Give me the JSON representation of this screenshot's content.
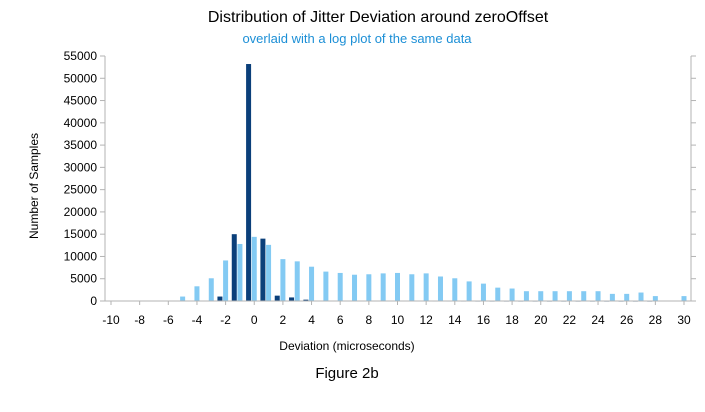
{
  "chart_data": {
    "type": "bar",
    "title": "Distribution of Jitter Deviation around zeroOffset",
    "subtitle": "overlaid with a log plot of the same data",
    "xlabel": "Deviation (microseconds)",
    "ylabel": "Number of Samples",
    "caption": "Figure 2b",
    "xlim": [
      -10,
      30
    ],
    "ylim": [
      0,
      55000
    ],
    "x_ticks": [
      -10,
      -8,
      -6,
      -4,
      -2,
      0,
      2,
      4,
      6,
      8,
      10,
      12,
      14,
      16,
      18,
      20,
      22,
      24,
      26,
      28,
      30
    ],
    "y_ticks": [
      0,
      5000,
      10000,
      15000,
      20000,
      25000,
      30000,
      35000,
      40000,
      45000,
      50000,
      55000
    ],
    "grid": false,
    "colors": {
      "linear": "#0b3f7a",
      "log": "#83caf3"
    },
    "categories": [
      -10,
      -9,
      -8,
      -7,
      -6,
      -5,
      -4,
      -3,
      -2,
      -1,
      0,
      1,
      2,
      3,
      4,
      5,
      6,
      7,
      8,
      9,
      10,
      11,
      12,
      13,
      14,
      15,
      16,
      17,
      18,
      19,
      20,
      21,
      22,
      23,
      24,
      25,
      26,
      27,
      28,
      29,
      30
    ],
    "series": [
      {
        "values": [
          0,
          0,
          0,
          0,
          0,
          0,
          0,
          0,
          1000,
          15000,
          53200,
          14000,
          1200,
          800,
          300,
          100,
          50,
          40,
          30,
          30,
          30,
          25,
          25,
          20,
          20,
          15,
          12,
          10,
          8,
          7,
          6,
          5,
          5,
          4,
          4,
          3,
          3,
          3,
          2,
          0,
          0
        ]
      },
      {
        "values": [
          0,
          0,
          0,
          0,
          0,
          1000,
          3300,
          5100,
          9100,
          12800,
          14400,
          12600,
          9400,
          8900,
          7700,
          6600,
          6300,
          5900,
          6000,
          6200,
          6300,
          6000,
          6200,
          5500,
          5100,
          4400,
          3900,
          3000,
          2800,
          2200,
          2200,
          2200,
          2200,
          2200,
          2200,
          1600,
          1600,
          1900,
          1100,
          0,
          1100
        ]
      }
    ]
  }
}
